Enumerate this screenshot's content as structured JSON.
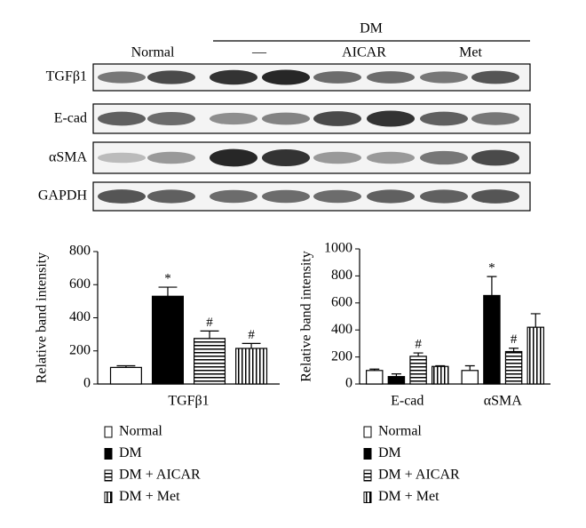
{
  "blot": {
    "group_labels": [
      "Normal",
      "DM"
    ],
    "lane_labels": [
      "—",
      "AICAR",
      "Met"
    ],
    "rows": [
      "TGFβ1",
      "E-cad",
      "αSMA",
      "GAPDH"
    ]
  },
  "chart_data": [
    {
      "type": "bar",
      "ylabel": "Relative band intensity",
      "categories": [
        "TGFβ1"
      ],
      "ylim": [
        0,
        800
      ],
      "yticks": [
        0,
        200,
        400,
        600,
        800
      ],
      "series": [
        {
          "name": "Normal",
          "color": "#ffffff",
          "values": [
            100
          ],
          "errors": [
            10
          ],
          "annotations": [
            null
          ]
        },
        {
          "name": "DM",
          "color": "#000000",
          "values": [
            530
          ],
          "errors": [
            55
          ],
          "annotations": [
            "*"
          ]
        },
        {
          "name": "DM + AICAR",
          "color": "#ffffff",
          "hatch": "horizontal",
          "values": [
            275
          ],
          "errors": [
            45
          ],
          "annotations": [
            "#"
          ]
        },
        {
          "name": "DM + Met",
          "color": "#ffffff",
          "hatch": "vertical",
          "values": [
            215
          ],
          "errors": [
            30
          ],
          "annotations": [
            "#"
          ]
        }
      ]
    },
    {
      "type": "bar",
      "ylabel": "Relative band intensity",
      "categories": [
        "E-cad",
        "αSMA"
      ],
      "ylim": [
        0,
        1000
      ],
      "yticks": [
        0,
        200,
        400,
        600,
        800,
        1000
      ],
      "series": [
        {
          "name": "Normal",
          "color": "#ffffff",
          "values": [
            100,
            100
          ],
          "errors": [
            10,
            35
          ],
          "annotations": [
            null,
            null
          ]
        },
        {
          "name": "DM",
          "color": "#000000",
          "values": [
            55,
            655
          ],
          "errors": [
            20,
            140
          ],
          "annotations": [
            null,
            "*"
          ]
        },
        {
          "name": "DM + AICAR",
          "color": "#ffffff",
          "hatch": "horizontal",
          "values": [
            205,
            240
          ],
          "errors": [
            25,
            25
          ],
          "annotations": [
            "#",
            "#"
          ]
        },
        {
          "name": "DM + Met",
          "color": "#ffffff",
          "hatch": "vertical",
          "values": [
            130,
            420
          ],
          "errors": [
            5,
            100
          ],
          "annotations": [
            null,
            null
          ]
        }
      ]
    }
  ]
}
